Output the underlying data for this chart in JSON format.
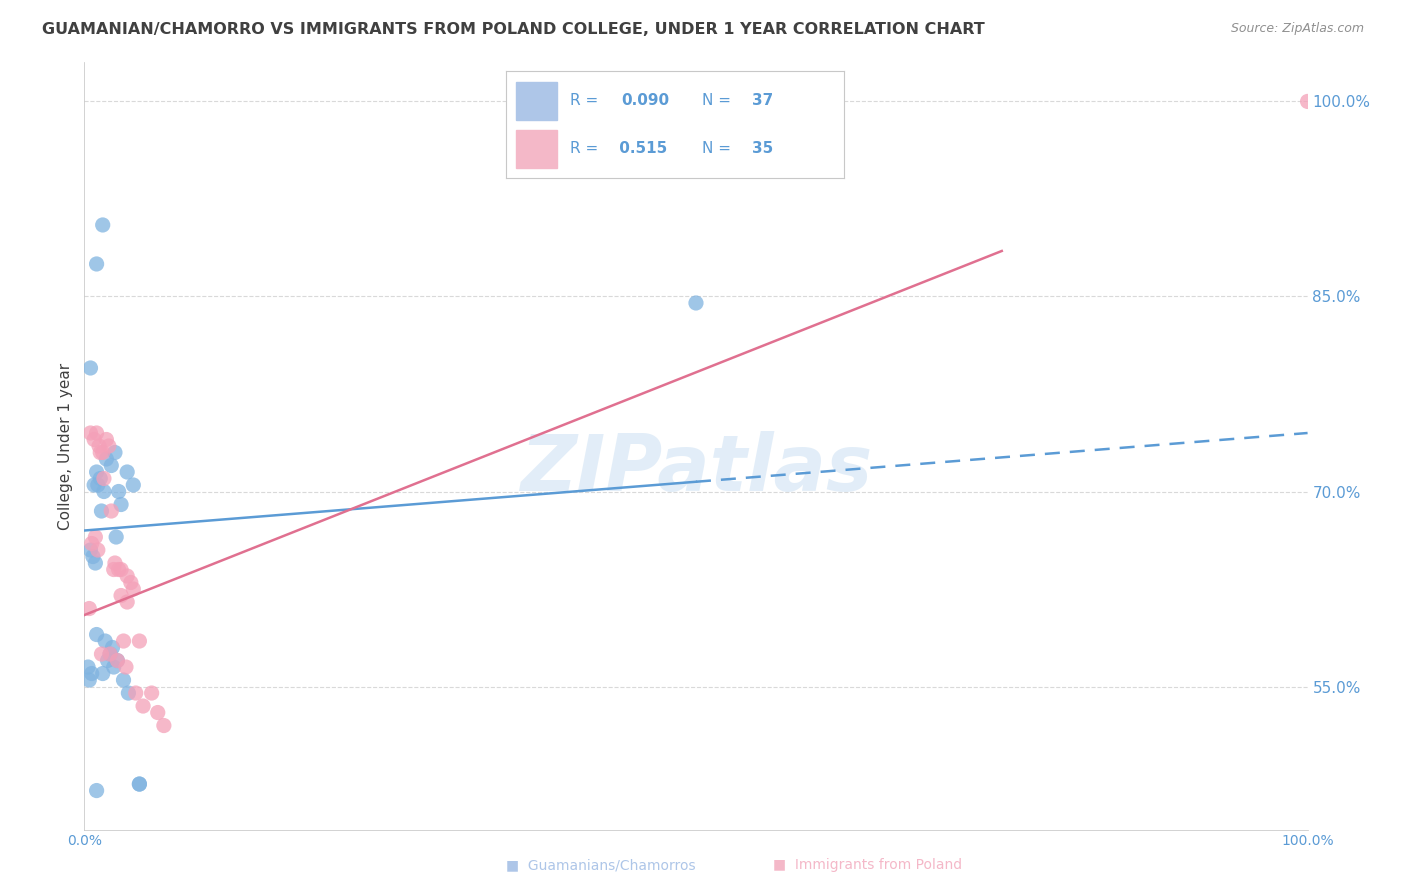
{
  "title": "GUAMANIAN/CHAMORRO VS IMMIGRANTS FROM POLAND COLLEGE, UNDER 1 YEAR CORRELATION CHART",
  "source": "Source: ZipAtlas.com",
  "ylabel": "College, Under 1 year",
  "xlim": [
    0,
    100
  ],
  "ylim": [
    44,
    103
  ],
  "yticks": [
    55,
    70,
    85,
    100
  ],
  "watermark": "ZIPatlas",
  "blue_color": "#7fb3e0",
  "pink_color": "#f4a0b8",
  "blue_line_color": "#5b9bd5",
  "pink_line_color": "#e07090",
  "legend_blue_box": "#aec6e8",
  "legend_pink_box": "#f4b8c8",
  "legend_text_color": "#5b9bd5",
  "title_color": "#404040",
  "axis_label_color": "#5b9bd5",
  "background_color": "#ffffff",
  "grid_color": "#d0d0d0",
  "r1": "0.090",
  "n1": "37",
  "r2": "0.515",
  "n2": "35",
  "blue_scatter": [
    [
      1.5,
      90.5
    ],
    [
      1.0,
      87.5
    ],
    [
      0.5,
      79.5
    ],
    [
      2.5,
      73.0
    ],
    [
      3.5,
      71.5
    ],
    [
      1.8,
      72.5
    ],
    [
      2.2,
      72.0
    ],
    [
      1.0,
      71.5
    ],
    [
      1.3,
      71.0
    ],
    [
      1.1,
      70.5
    ],
    [
      0.8,
      70.5
    ],
    [
      1.6,
      70.0
    ],
    [
      2.8,
      70.0
    ],
    [
      4.0,
      70.5
    ],
    [
      1.4,
      68.5
    ],
    [
      2.6,
      66.5
    ],
    [
      0.5,
      65.5
    ],
    [
      0.9,
      64.5
    ],
    [
      0.7,
      65.0
    ],
    [
      50.0,
      84.5
    ],
    [
      1.7,
      58.5
    ],
    [
      2.3,
      58.0
    ],
    [
      2.1,
      57.5
    ],
    [
      1.9,
      57.0
    ],
    [
      2.4,
      56.5
    ],
    [
      0.6,
      56.0
    ],
    [
      2.7,
      57.0
    ],
    [
      3.2,
      55.5
    ],
    [
      3.6,
      54.5
    ],
    [
      1.5,
      56.0
    ],
    [
      4.5,
      47.5
    ],
    [
      1.0,
      47.0
    ],
    [
      4.5,
      47.5
    ],
    [
      0.3,
      56.5
    ],
    [
      0.4,
      55.5
    ],
    [
      3.0,
      69.0
    ],
    [
      1.0,
      59.0
    ]
  ],
  "pink_scatter": [
    [
      0.5,
      74.5
    ],
    [
      0.8,
      74.0
    ],
    [
      1.0,
      74.5
    ],
    [
      1.2,
      73.5
    ],
    [
      1.5,
      73.0
    ],
    [
      1.8,
      74.0
    ],
    [
      2.0,
      73.5
    ],
    [
      2.5,
      64.5
    ],
    [
      2.8,
      64.0
    ],
    [
      3.0,
      64.0
    ],
    [
      3.5,
      63.5
    ],
    [
      3.8,
      63.0
    ],
    [
      4.0,
      62.5
    ],
    [
      3.0,
      62.0
    ],
    [
      3.5,
      61.5
    ],
    [
      1.3,
      73.0
    ],
    [
      1.6,
      71.0
    ],
    [
      2.2,
      68.5
    ],
    [
      0.6,
      66.0
    ],
    [
      0.9,
      66.5
    ],
    [
      1.1,
      65.5
    ],
    [
      2.4,
      64.0
    ],
    [
      3.2,
      58.5
    ],
    [
      2.1,
      57.5
    ],
    [
      4.2,
      54.5
    ],
    [
      1.4,
      57.5
    ],
    [
      2.7,
      57.0
    ],
    [
      3.4,
      56.5
    ],
    [
      4.8,
      53.5
    ],
    [
      100.0,
      100.0
    ],
    [
      0.4,
      61.0
    ],
    [
      4.5,
      58.5
    ],
    [
      5.5,
      54.5
    ],
    [
      6.0,
      53.0
    ],
    [
      6.5,
      52.0
    ]
  ],
  "blue_line": {
    "x0": 0,
    "x1": 100,
    "y0": 67.0,
    "y1": 74.5
  },
  "blue_solid_end": 50,
  "pink_line": {
    "x0": 0,
    "x1": 75,
    "y0": 60.5,
    "y1": 88.5
  }
}
